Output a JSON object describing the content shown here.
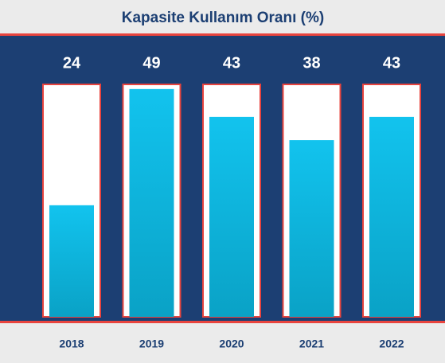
{
  "chart_data": {
    "type": "bar",
    "title": "Kapasite Kullanım Oranı (%)",
    "categories": [
      "2018",
      "2019",
      "2020",
      "2021",
      "2022"
    ],
    "values": [
      24,
      49,
      43,
      38,
      43
    ],
    "color": "#10bde8",
    "ylim": [
      0,
      50
    ]
  }
}
